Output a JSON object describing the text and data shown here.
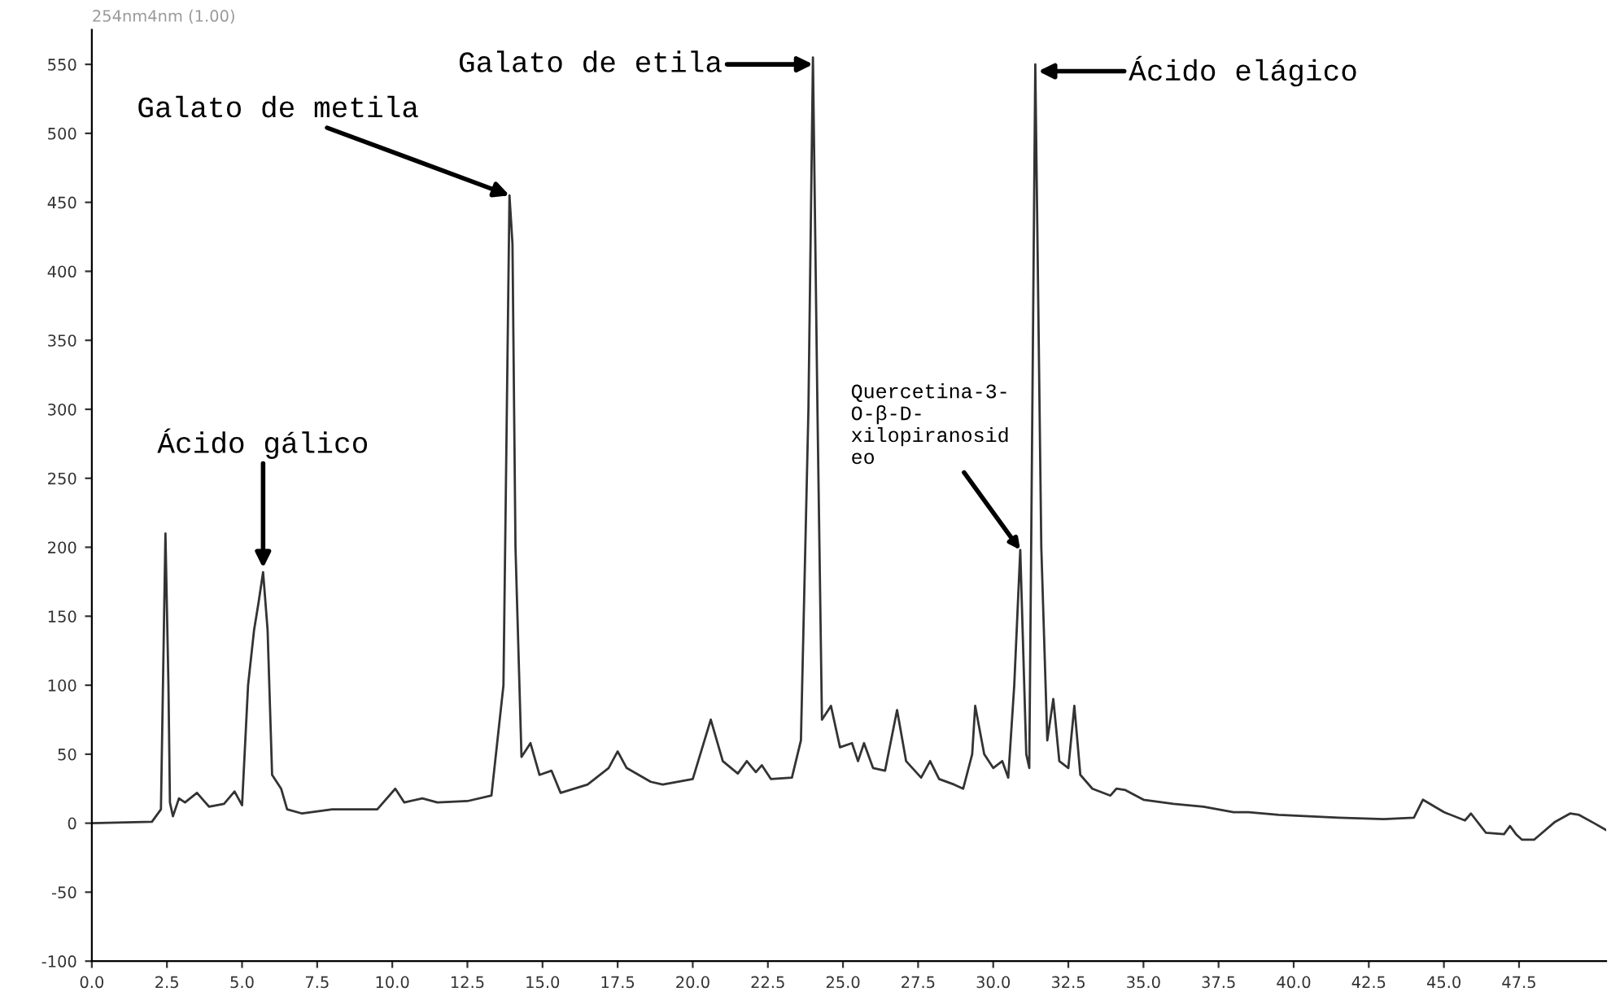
{
  "chart_data": {
    "type": "line",
    "title": "254nm4nm (1.00)",
    "x": [
      0,
      2.0,
      2.3,
      2.45,
      2.55,
      2.6,
      2.7,
      2.9,
      3.1,
      3.5,
      3.9,
      4.4,
      4.75,
      5.0,
      5.2,
      5.4,
      5.55,
      5.7,
      5.85,
      6.0,
      6.3,
      6.5,
      7.0,
      8.0,
      9.5,
      10.1,
      10.4,
      11.0,
      11.5,
      12.5,
      13.3,
      13.7,
      13.9,
      14.0,
      14.1,
      14.3,
      14.6,
      14.9,
      15.3,
      15.6,
      16.5,
      17.2,
      17.5,
      17.8,
      18.2,
      18.6,
      19.0,
      20.0,
      20.6,
      21.0,
      21.5,
      21.8,
      22.1,
      22.3,
      22.6,
      23.3,
      23.6,
      23.85,
      24.0,
      24.15,
      24.3,
      24.6,
      24.9,
      25.3,
      25.5,
      25.7,
      26.0,
      26.4,
      26.8,
      27.1,
      27.6,
      27.9,
      28.2,
      28.7,
      29.0,
      29.3,
      29.4,
      29.7,
      30.0,
      30.3,
      30.5,
      30.7,
      30.9,
      31.1,
      31.2,
      31.4,
      31.6,
      31.8,
      32.0,
      32.2,
      32.5,
      32.7,
      32.9,
      33.3,
      33.9,
      34.1,
      34.4,
      35.0,
      36.0,
      37.0,
      38.0,
      38.5,
      39.5,
      41.5,
      43.0,
      44.0,
      44.3,
      45.0,
      45.7,
      45.9,
      46.4,
      47.0,
      47.2,
      47.4,
      47.6,
      48.0,
      48.7,
      49.2,
      49.5,
      50.0,
      50.4
    ],
    "series": [
      {
        "color": "#333333",
        "values": [
          0,
          1,
          10,
          210,
          100,
          15,
          5,
          18,
          15,
          22,
          12,
          14,
          23,
          13,
          100,
          140,
          160,
          182,
          140,
          35,
          25,
          10,
          7,
          10,
          10,
          25,
          15,
          18,
          15,
          16,
          20,
          100,
          455,
          420,
          200,
          48,
          58,
          35,
          38,
          22,
          28,
          40,
          52,
          40,
          35,
          30,
          28,
          32,
          75,
          45,
          36,
          45,
          37,
          42,
          32,
          33,
          60,
          300,
          555,
          300,
          75,
          85,
          55,
          58,
          45,
          58,
          40,
          38,
          82,
          45,
          33,
          45,
          32,
          28,
          25,
          50,
          85,
          50,
          40,
          45,
          33,
          100,
          198,
          50,
          40,
          550,
          200,
          60,
          90,
          45,
          40,
          85,
          35,
          25,
          20,
          25,
          24,
          17,
          14,
          12,
          8,
          8,
          6,
          4,
          3,
          4,
          17,
          8,
          2,
          7,
          -7,
          -8,
          -2,
          -8,
          -12,
          -12,
          1,
          7,
          6,
          0,
          -5
        ]
      }
    ],
    "xlim": [
      0,
      50.4
    ],
    "ylim": [
      -100,
      575
    ],
    "xticks": [
      {
        "value": 0,
        "label": "0.0"
      },
      {
        "value": 2.5,
        "label": "2.5"
      },
      {
        "value": 5,
        "label": "5.0"
      },
      {
        "value": 7.5,
        "label": "7.5"
      },
      {
        "value": 10,
        "label": "10.0"
      },
      {
        "value": 12.5,
        "label": "12.5"
      },
      {
        "value": 15,
        "label": "15.0"
      },
      {
        "value": 17.5,
        "label": "17.5"
      },
      {
        "value": 20,
        "label": "20.0"
      },
      {
        "value": 22.5,
        "label": "22.5"
      },
      {
        "value": 25,
        "label": "25.0"
      },
      {
        "value": 27.5,
        "label": "27.5"
      },
      {
        "value": 30,
        "label": "30.0"
      },
      {
        "value": 32.5,
        "label": "32.5"
      },
      {
        "value": 35,
        "label": "35.0"
      },
      {
        "value": 37.5,
        "label": "37.5"
      },
      {
        "value": 40,
        "label": "40.0"
      },
      {
        "value": 42.5,
        "label": "42.5"
      },
      {
        "value": 45,
        "label": "45.0"
      },
      {
        "value": 47.5,
        "label": "47.5"
      }
    ],
    "yticks": [
      -100,
      -50,
      0,
      50,
      100,
      150,
      200,
      250,
      300,
      350,
      400,
      450,
      500,
      550
    ],
    "grid": false,
    "legend": false,
    "marker": "none",
    "line_style": "solid",
    "annotations": [
      {
        "text": "Ácido gálico",
        "x": 5.7,
        "y": 185
      },
      {
        "text": "Galato de metila",
        "x": 13.9,
        "y": 455
      },
      {
        "text": "Galato de etila",
        "x": 24.0,
        "y": 550
      },
      {
        "text": "Quercetina-3-\nO-β-D-\nxilopiranosid\neo",
        "x": 30.9,
        "y": 198
      },
      {
        "text": "Ácido elágico",
        "x": 31.5,
        "y": 545
      }
    ]
  }
}
